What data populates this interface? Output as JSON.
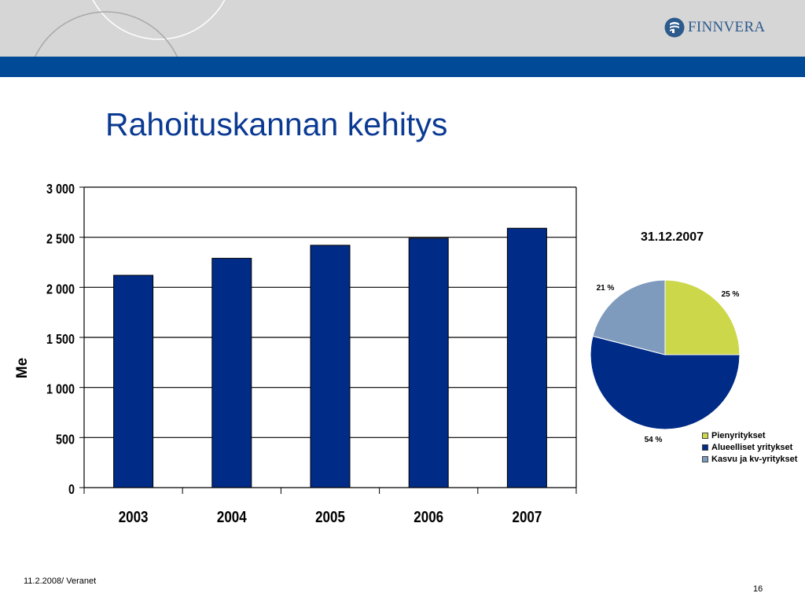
{
  "brand": {
    "name": "FINNVERA"
  },
  "title": "Rahoituskannan kehitys",
  "colors": {
    "header_bg": "#d6d6d6",
    "header_band": "#004a98",
    "bar": "#002b86",
    "pie_small": "#ccd84a",
    "pie_regional": "#002b86",
    "pie_growth": "#7e9bbe",
    "title": "#0b3a93"
  },
  "chart_data": [
    {
      "type": "bar",
      "categories": [
        "2003",
        "2004",
        "2005",
        "2006",
        "2007"
      ],
      "values": [
        2120,
        2290,
        2420,
        2490,
        2590
      ],
      "ylabel": "Me",
      "ylim": [
        0,
        3000
      ],
      "yticks": [
        0,
        500,
        1000,
        1500,
        2000,
        2500,
        3000
      ],
      "ytick_labels": [
        "0",
        "500",
        "1 000",
        "1 500",
        "2 000",
        "2 500",
        "3 000"
      ],
      "grid": true
    },
    {
      "type": "pie",
      "title": "31.12.2007",
      "labels": [
        "Pienyritykset",
        "Alueelliset yritykset",
        "Kasvu ja kv-yritykset"
      ],
      "values": [
        25,
        54,
        21
      ],
      "value_labels": [
        "25 %",
        "54 %",
        "21 %"
      ],
      "legend": "bottom-right"
    }
  ],
  "footer": {
    "left": "11.2.2008/ Veranet",
    "page": "16"
  }
}
